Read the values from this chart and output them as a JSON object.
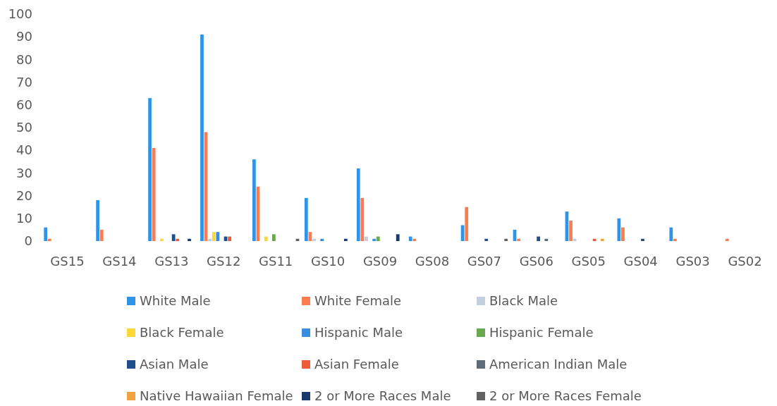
{
  "chart_data": {
    "type": "bar",
    "categories": [
      "GS15",
      "GS14",
      "GS13",
      "GS12",
      "GS11",
      "GS10",
      "GS09",
      "GS08",
      "GS07",
      "GS06",
      "GS05",
      "GS04",
      "GS03",
      "GS02"
    ],
    "ylim": [
      0,
      100
    ],
    "yticks": [
      0,
      10,
      20,
      30,
      40,
      50,
      60,
      70,
      80,
      90,
      100
    ],
    "grid": false,
    "legend": "bottom",
    "series": [
      {
        "name": "White Male",
        "color": "#2f94e8",
        "values": [
          6,
          18,
          63,
          91,
          36,
          19,
          32,
          2,
          7,
          5,
          13,
          10,
          6,
          0
        ]
      },
      {
        "name": "White Female",
        "color": "#fb7d4f",
        "values": [
          1,
          5,
          41,
          48,
          24,
          4,
          19,
          1,
          15,
          1,
          9,
          6,
          1,
          1
        ]
      },
      {
        "name": "Black Male",
        "color": "#c3cfdc",
        "values": [
          0,
          0,
          0,
          1,
          0,
          1,
          2,
          0,
          0,
          0,
          1,
          0,
          0,
          0
        ]
      },
      {
        "name": "Black Female",
        "color": "#fcd73a",
        "values": [
          0,
          0,
          1,
          4,
          2,
          0,
          0,
          0,
          0,
          0,
          0,
          0,
          0,
          0
        ]
      },
      {
        "name": "Hispanic Male",
        "color": "#3a8ee0",
        "values": [
          0,
          0,
          0,
          4,
          0,
          1,
          1,
          0,
          0,
          0,
          0,
          0,
          0,
          0
        ]
      },
      {
        "name": "Hispanic Female",
        "color": "#6aa84f",
        "values": [
          0,
          0,
          0,
          0,
          3,
          0,
          2,
          0,
          0,
          0,
          0,
          0,
          0,
          0
        ]
      },
      {
        "name": "Asian Male",
        "color": "#1f4e8c",
        "values": [
          0,
          0,
          3,
          2,
          0,
          0,
          0,
          0,
          1,
          2,
          0,
          1,
          0,
          0
        ]
      },
      {
        "name": "Asian Female",
        "color": "#ef5a3a",
        "values": [
          0,
          0,
          1,
          2,
          0,
          0,
          0,
          0,
          0,
          0,
          1,
          0,
          0,
          0
        ]
      },
      {
        "name": "American Indian Male",
        "color": "#5f6b77",
        "values": [
          0,
          0,
          0,
          0,
          0,
          0,
          0,
          0,
          0,
          1,
          0,
          0,
          0,
          0
        ]
      },
      {
        "name": "Native Hawaiian Female",
        "color": "#f0a341",
        "values": [
          0,
          0,
          0,
          0,
          0,
          0,
          0,
          0,
          0,
          0,
          1,
          0,
          0,
          0
        ]
      },
      {
        "name": "2 or More Races Male",
        "color": "#1b3a6b",
        "values": [
          0,
          0,
          1,
          0,
          0,
          1,
          3,
          0,
          0,
          0,
          0,
          0,
          0,
          0
        ]
      },
      {
        "name": "2 or More Races Female",
        "color": "#616161",
        "values": [
          0,
          0,
          0,
          0,
          1,
          0,
          0,
          0,
          1,
          0,
          0,
          0,
          0,
          0
        ]
      }
    ]
  }
}
